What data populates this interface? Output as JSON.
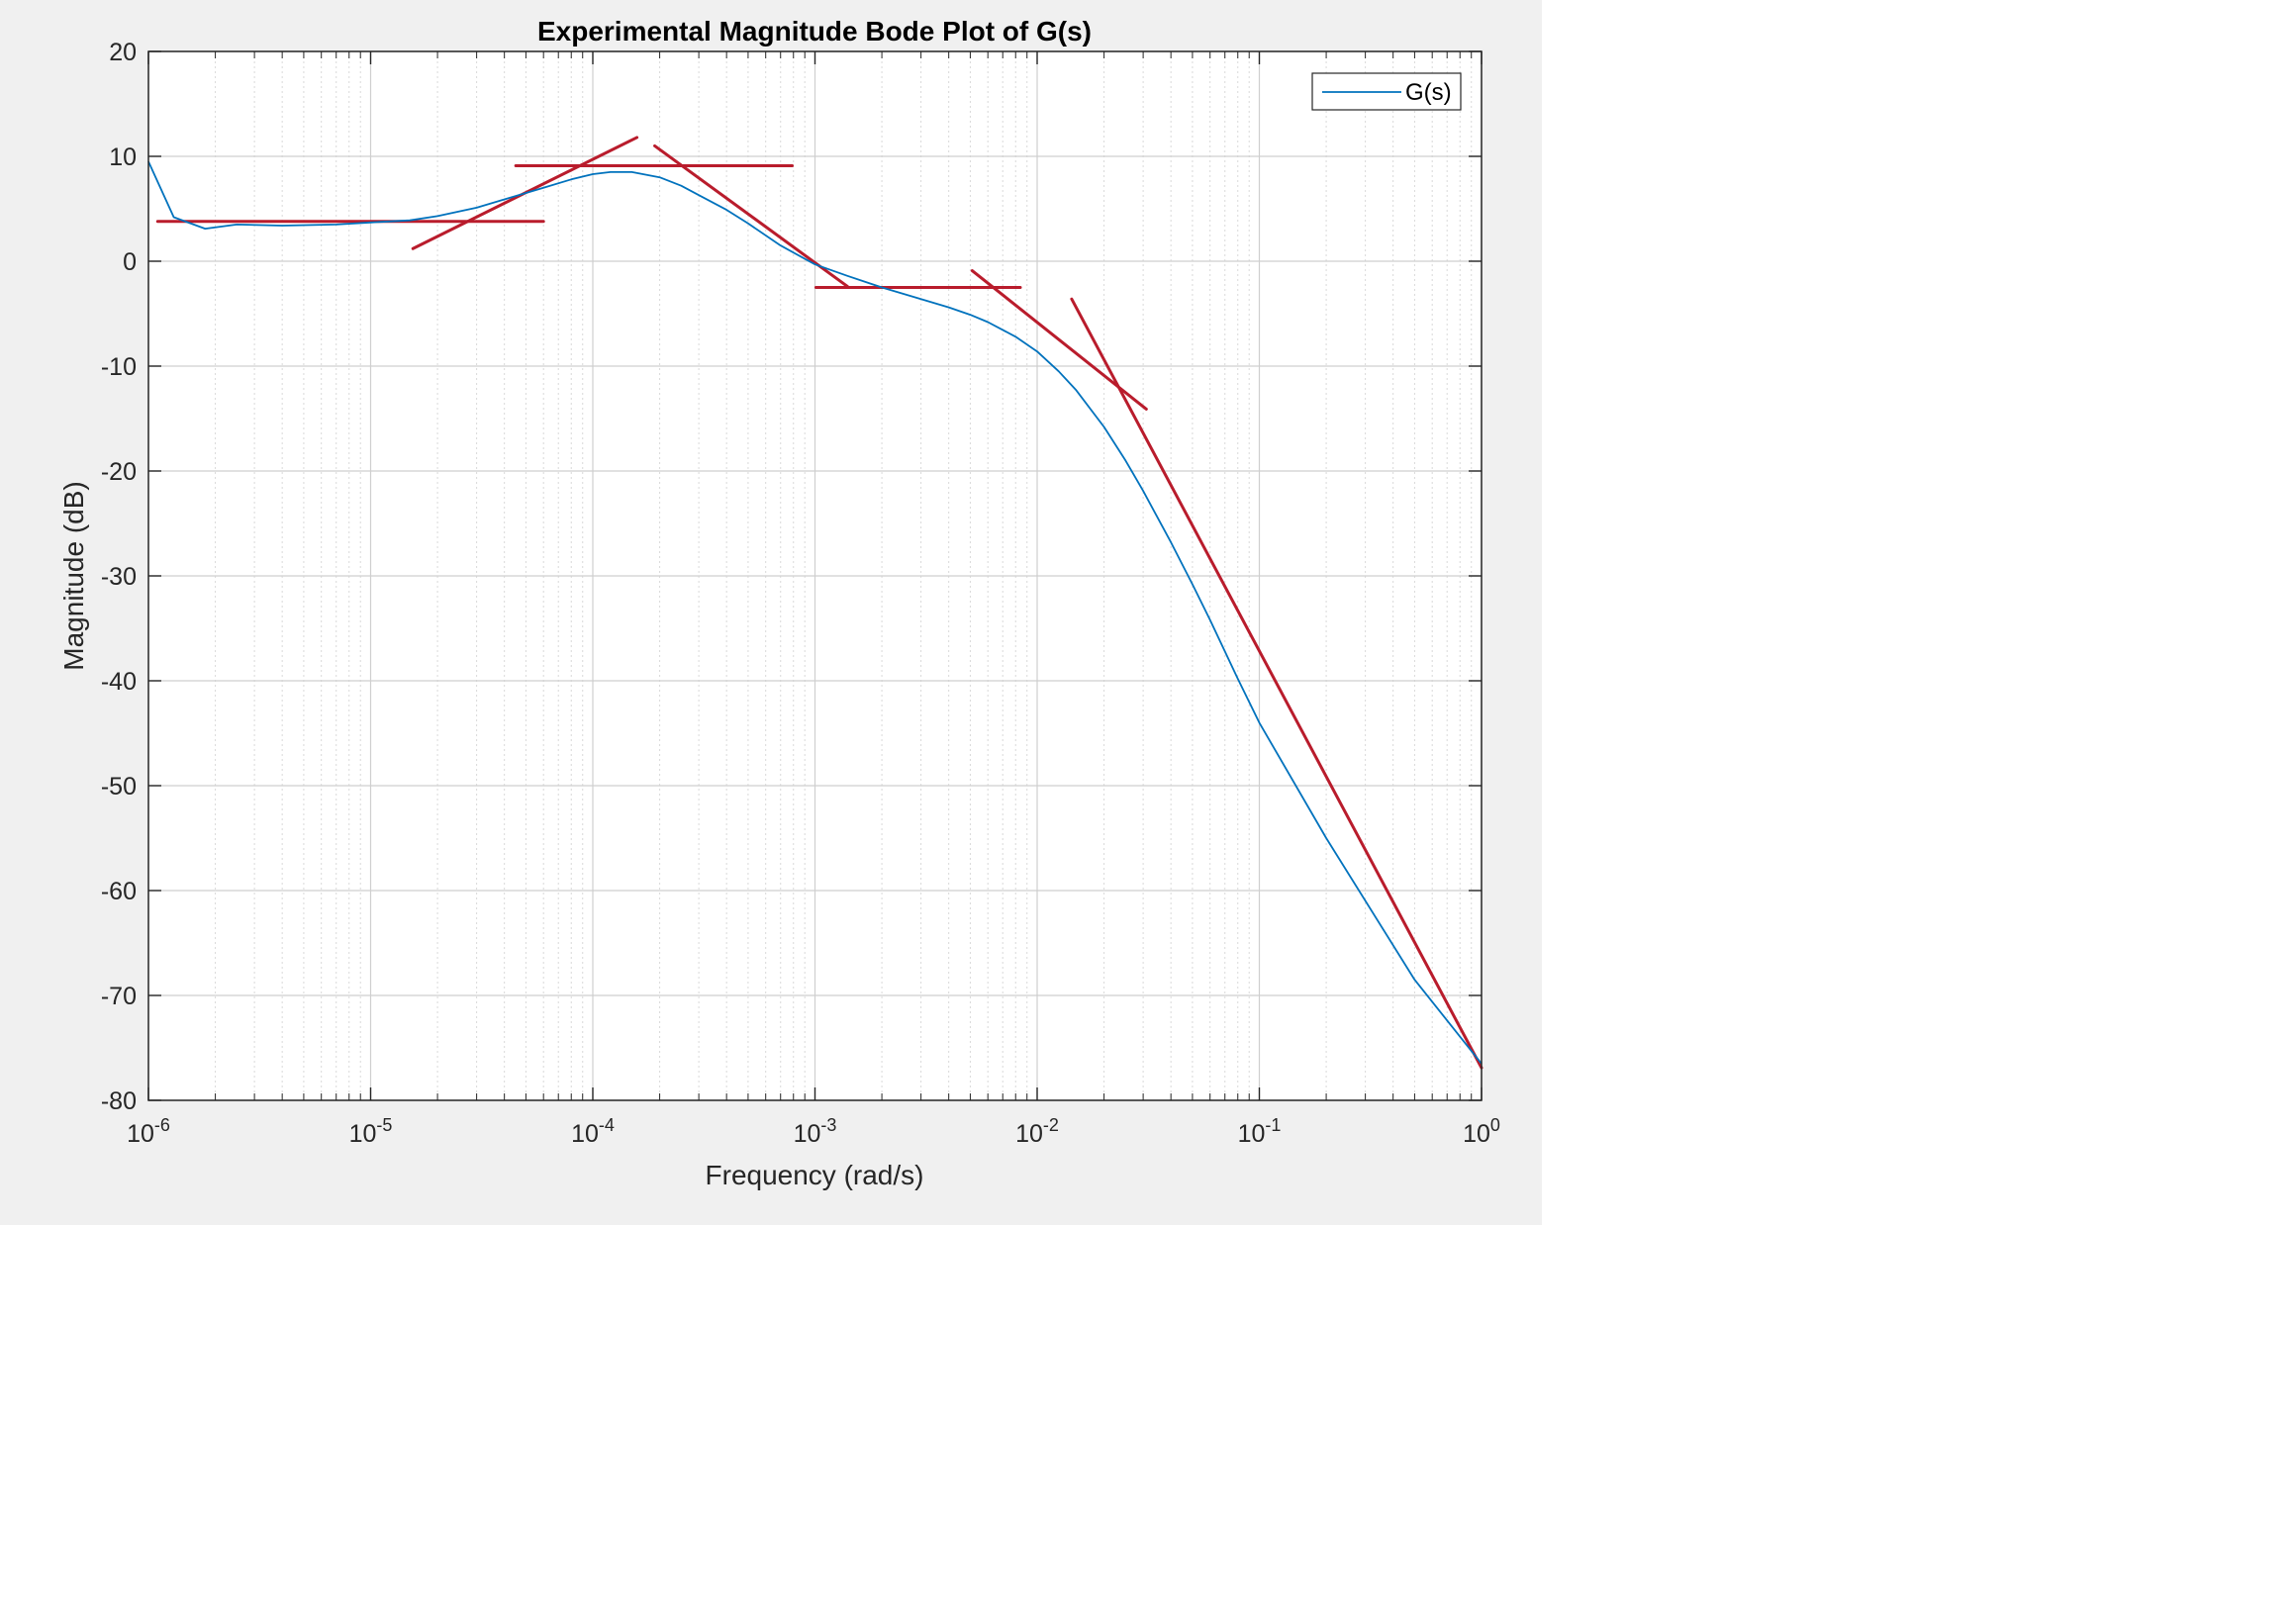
{
  "chart_data": {
    "type": "line",
    "title": "Experimental Magnitude Bode Plot of G(s)",
    "xlabel": "Frequency (rad/s)",
    "ylabel": "Magnitude (dB)",
    "xscale": "log",
    "xlim": [
      1e-06,
      1
    ],
    "ylim": [
      -80,
      20
    ],
    "grid": true,
    "minor_grid": true,
    "legend_position": "top-right",
    "x_tick_labels": [
      {
        "base": "10",
        "exp": "-6",
        "value": 1e-06
      },
      {
        "base": "10",
        "exp": "-5",
        "value": 1e-05
      },
      {
        "base": "10",
        "exp": "-4",
        "value": 0.0001
      },
      {
        "base": "10",
        "exp": "-3",
        "value": 0.001
      },
      {
        "base": "10",
        "exp": "-2",
        "value": 0.01
      },
      {
        "base": "10",
        "exp": "-1",
        "value": 0.1
      },
      {
        "base": "10",
        "exp": "0",
        "value": 1
      }
    ],
    "y_ticks": [
      20,
      10,
      0,
      -10,
      -20,
      -30,
      -40,
      -50,
      -60,
      -70,
      -80
    ],
    "y_tick_labels": [
      "20",
      "10",
      "0",
      "-10",
      "-20",
      "-30",
      "-40",
      "-50",
      "-60",
      "-70",
      "-80"
    ],
    "series": [
      {
        "name": "G(s)",
        "color": "#0072bd",
        "x": [
          1e-06,
          1.3e-06,
          1.8e-06,
          2.5e-06,
          4e-06,
          7e-06,
          1e-05,
          1.5e-05,
          2e-05,
          3e-05,
          4e-05,
          6e-05,
          8e-05,
          0.0001,
          0.00012,
          0.00015,
          0.0002,
          0.00025,
          0.0003,
          0.0004,
          0.0005,
          0.0007,
          0.001,
          0.0014,
          0.002,
          0.003,
          0.004,
          0.005,
          0.006,
          0.008,
          0.01,
          0.0125,
          0.015,
          0.02,
          0.025,
          0.03,
          0.04,
          0.05,
          0.06,
          0.08,
          0.1,
          0.2,
          0.5,
          1
        ],
        "y": [
          9.5,
          4.2,
          3.1,
          3.5,
          3.4,
          3.5,
          3.7,
          3.9,
          4.3,
          5.1,
          5.9,
          7.0,
          7.8,
          8.3,
          8.5,
          8.5,
          8.0,
          7.2,
          6.3,
          4.9,
          3.6,
          1.5,
          -0.3,
          -1.4,
          -2.5,
          -3.6,
          -4.4,
          -5.1,
          -5.8,
          -7.2,
          -8.6,
          -10.5,
          -12.3,
          -15.8,
          -19.0,
          -21.9,
          -26.8,
          -30.8,
          -34.2,
          -39.8,
          -44.0,
          -55.0,
          -68.5,
          -76.5
        ]
      }
    ],
    "asymptotes": {
      "color": "#b91c2c",
      "segments": [
        {
          "x": [
            1.1e-06,
            6e-05
          ],
          "y": [
            3.8,
            3.8
          ]
        },
        {
          "x": [
            1.55e-05,
            0.000158
          ],
          "y": [
            1.2,
            11.8
          ]
        },
        {
          "x": [
            4.5e-05,
            0.00079
          ],
          "y": [
            9.1,
            9.1
          ]
        },
        {
          "x": [
            0.00019,
            0.0014
          ],
          "y": [
            11.0,
            -2.4
          ]
        },
        {
          "x": [
            0.00101,
            0.0084
          ],
          "y": [
            -2.5,
            -2.5
          ]
        },
        {
          "x": [
            0.0051,
            0.031
          ],
          "y": [
            -0.9,
            -14.1
          ]
        },
        {
          "x": [
            0.0143,
            1
          ],
          "y": [
            -3.6,
            -76.9
          ]
        }
      ]
    }
  }
}
